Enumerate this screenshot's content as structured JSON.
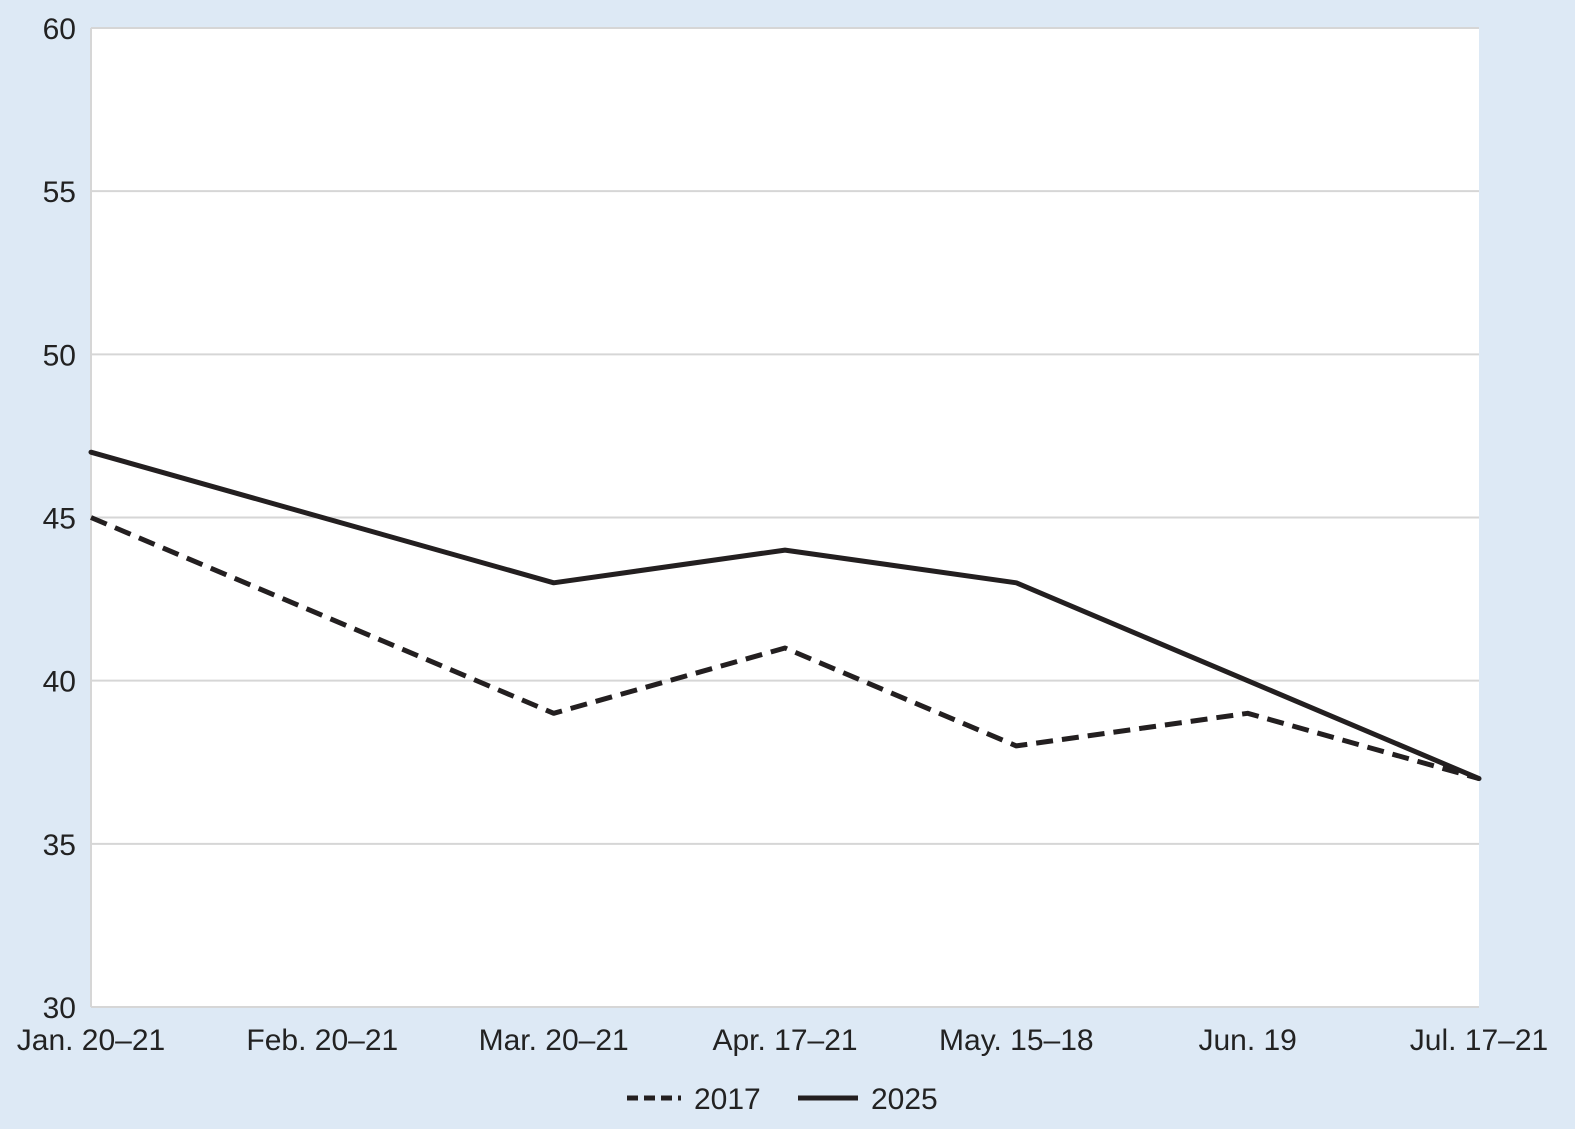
{
  "colors": {
    "background": "#dde9f5",
    "plot_background": "#ffffff",
    "gridline": "#d6d6d6",
    "series_line": "#231f20",
    "text": "#222222"
  },
  "chart_data": {
    "type": "line",
    "title": "",
    "xlabel": "",
    "ylabel": "",
    "categories": [
      "Jan. 20–21",
      "Feb. 20–21",
      "Mar. 20–21",
      "Apr. 17–21",
      "May. 15–18",
      "Jun. 19",
      "Jul. 17–21"
    ],
    "ylim": [
      30,
      60
    ],
    "yticks": [
      30,
      35,
      40,
      45,
      50,
      55,
      60
    ],
    "grid": true,
    "legend_position": "bottom-center",
    "series": [
      {
        "name": "2017",
        "style": "dashed",
        "values": [
          45,
          null,
          39,
          41,
          38,
          39,
          37
        ]
      },
      {
        "name": "2025",
        "style": "solid",
        "values": [
          47,
          null,
          43,
          44,
          43,
          40,
          37
        ]
      }
    ]
  }
}
